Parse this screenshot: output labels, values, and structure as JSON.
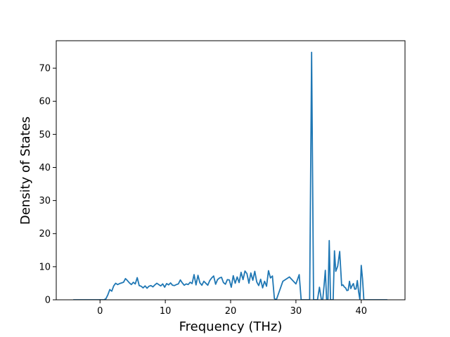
{
  "chart_data": {
    "type": "line",
    "title": "",
    "xlabel": "Frequency (THz)",
    "ylabel": "Density of States",
    "xlim": [
      -6.7,
      46.7
    ],
    "ylim": [
      0,
      78.3
    ],
    "xticks": [
      0,
      10,
      20,
      30,
      40
    ],
    "yticks": [
      0,
      10,
      20,
      30,
      40,
      50,
      60,
      70
    ],
    "grid": false,
    "legend": "none",
    "colors": {
      "line": "#1f77b4",
      "axes": "#000000",
      "background": "#ffffff"
    },
    "series": [
      {
        "x": [
          -4.1,
          -3.5,
          -3.0,
          -2.5,
          -2.0,
          -1.5,
          -1.0,
          -0.5,
          0.0,
          0.3,
          0.6,
          0.9,
          1.2,
          1.5,
          1.8,
          2.1,
          2.4,
          2.7,
          3.0,
          3.3,
          3.6,
          3.9,
          4.2,
          4.5,
          4.8,
          5.1,
          5.4,
          5.7,
          6.0,
          6.3,
          6.6,
          6.9,
          7.2,
          7.5,
          7.8,
          8.1,
          8.4,
          8.7,
          9.0,
          9.3,
          9.6,
          9.9,
          10.2,
          10.5,
          10.8,
          11.1,
          11.4,
          11.7,
          12.0,
          12.3,
          12.6,
          12.9,
          13.2,
          13.5,
          13.8,
          14.1,
          14.4,
          14.7,
          15.0,
          15.3,
          15.6,
          15.9,
          16.2,
          16.5,
          16.8,
          17.1,
          17.4,
          17.7,
          18.0,
          18.3,
          18.6,
          18.9,
          19.2,
          19.5,
          19.8,
          20.1,
          20.4,
          20.7,
          21.0,
          21.3,
          21.6,
          21.9,
          22.2,
          22.5,
          22.8,
          23.1,
          23.4,
          23.7,
          24.0,
          24.3,
          24.6,
          24.9,
          25.2,
          25.5,
          25.8,
          26.1,
          26.4,
          26.7,
          27.0,
          28.0,
          29.0,
          30.0,
          30.5,
          30.8,
          31.0,
          31.2,
          31.4,
          31.7,
          31.9,
          32.1,
          32.4,
          32.7,
          33.0,
          33.3,
          33.6,
          33.9,
          34.1,
          34.3,
          34.5,
          34.7,
          34.9,
          35.1,
          35.3,
          35.5,
          35.7,
          35.9,
          36.1,
          36.4,
          36.7,
          37.0,
          37.2,
          37.4,
          37.6,
          37.8,
          38.0,
          38.2,
          38.4,
          38.6,
          38.8,
          39.0,
          39.2,
          39.4,
          39.6,
          39.8,
          40.0,
          40.2,
          40.4,
          40.7,
          41.0,
          42.0,
          43.0,
          44.0
        ],
        "values": [
          0,
          0,
          0,
          0,
          0,
          0,
          0,
          0,
          0,
          0,
          0,
          0.3,
          1.5,
          3.1,
          2.6,
          4.2,
          5.0,
          4.6,
          4.9,
          5.1,
          5.3,
          6.4,
          5.8,
          5.1,
          4.6,
          5.3,
          4.8,
          6.7,
          4.3,
          4.1,
          3.6,
          4.2,
          3.5,
          4.1,
          4.3,
          3.9,
          4.5,
          5.0,
          4.6,
          4.2,
          4.8,
          3.8,
          4.9,
          4.5,
          5.1,
          4.4,
          4.3,
          4.6,
          4.8,
          6.0,
          5.1,
          4.4,
          4.8,
          4.6,
          5.3,
          4.9,
          7.6,
          4.5,
          7.4,
          5.1,
          4.4,
          5.6,
          5.0,
          4.4,
          5.8,
          6.6,
          7.2,
          4.7,
          6.1,
          6.6,
          6.8,
          5.2,
          4.7,
          6.1,
          6.0,
          3.8,
          7.3,
          5.0,
          6.9,
          5.2,
          8.3,
          6.1,
          8.7,
          7.9,
          5.0,
          8.1,
          5.9,
          8.6,
          5.4,
          4.3,
          6.2,
          3.6,
          5.6,
          4.1,
          8.8,
          6.6,
          7.2,
          0.4,
          0,
          5.6,
          6.9,
          4.8,
          7.6,
          0,
          0,
          0,
          0,
          0,
          0,
          0,
          74.8,
          0,
          0,
          0,
          3.8,
          0,
          0,
          4.1,
          8.9,
          0,
          0,
          17.9,
          0,
          0,
          0,
          14.8,
          8.6,
          10.2,
          14.6,
          4.3,
          4.5,
          3.9,
          3.6,
          2.8,
          2.9,
          5.6,
          3.4,
          4.3,
          4.9,
          3.2,
          3.3,
          5.8,
          2.4,
          0,
          10.4,
          6.2,
          0,
          0,
          0,
          0,
          0,
          0
        ]
      }
    ]
  }
}
